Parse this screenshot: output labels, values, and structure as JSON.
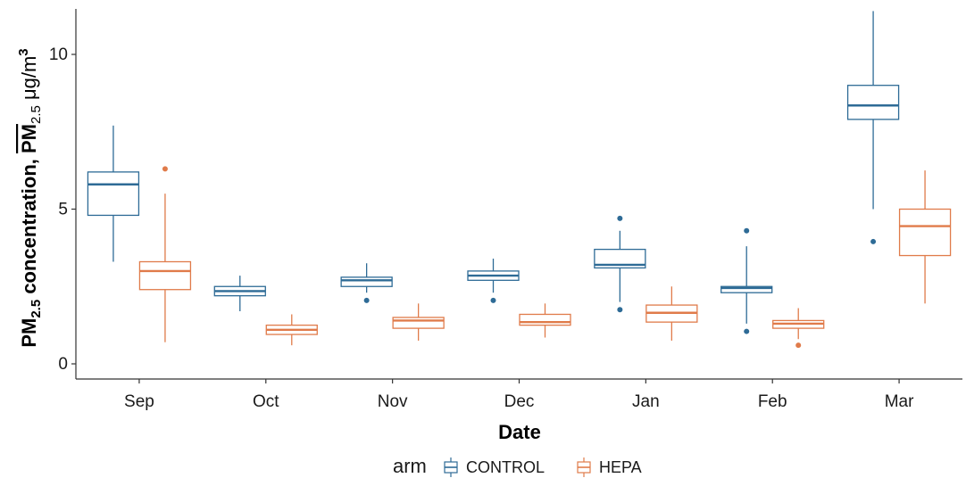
{
  "chart_data": {
    "type": "boxplot",
    "title": "",
    "xlabel": "Date",
    "ylabel": "PM2.5 concentration, PM2.5 μg/m3",
    "ylabel_parts": {
      "pm": "PM",
      "sub": "2.5",
      "mid": " concentration, ",
      "pm_bar": "PM",
      "sub2": "2.5",
      "unit": " μg/m",
      "sup": "3"
    },
    "ylim": [
      -0.5,
      11.5
    ],
    "yticks": [
      0,
      5,
      10
    ],
    "ytick_labels": [
      "0",
      "5",
      "10"
    ],
    "categories": [
      "Sep",
      "Oct",
      "Nov",
      "Dec",
      "Jan",
      "Feb",
      "Mar"
    ],
    "legend": {
      "title": "arm",
      "position": "bottom"
    },
    "grid": false,
    "series": [
      {
        "name": "CONTROL",
        "color": "#2e6b96",
        "boxes": [
          {
            "whisker_low": 3.3,
            "q1": 4.8,
            "median": 5.8,
            "q3": 6.2,
            "whisker_high": 7.7,
            "outliers": []
          },
          {
            "whisker_low": 1.7,
            "q1": 2.2,
            "median": 2.35,
            "q3": 2.5,
            "whisker_high": 2.85,
            "outliers": []
          },
          {
            "whisker_low": 2.3,
            "q1": 2.5,
            "median": 2.7,
            "q3": 2.8,
            "whisker_high": 3.25,
            "outliers": [
              2.05
            ]
          },
          {
            "whisker_low": 2.3,
            "q1": 2.7,
            "median": 2.85,
            "q3": 3.0,
            "whisker_high": 3.4,
            "outliers": [
              2.05
            ]
          },
          {
            "whisker_low": 2.0,
            "q1": 3.1,
            "median": 3.2,
            "q3": 3.7,
            "whisker_high": 4.3,
            "outliers": [
              1.75,
              4.7
            ]
          },
          {
            "whisker_low": 1.3,
            "q1": 2.3,
            "median": 2.45,
            "q3": 2.5,
            "whisker_high": 3.8,
            "outliers": [
              1.05,
              4.3
            ]
          },
          {
            "whisker_low": 5.0,
            "q1": 7.9,
            "median": 8.35,
            "q3": 9.0,
            "whisker_high": 11.4,
            "outliers": [
              3.95
            ]
          }
        ]
      },
      {
        "name": "HEPA",
        "color": "#e07b4a",
        "boxes": [
          {
            "whisker_low": 0.7,
            "q1": 2.4,
            "median": 3.0,
            "q3": 3.3,
            "whisker_high": 5.5,
            "outliers": [
              6.3
            ]
          },
          {
            "whisker_low": 0.6,
            "q1": 0.95,
            "median": 1.1,
            "q3": 1.25,
            "whisker_high": 1.6,
            "outliers": []
          },
          {
            "whisker_low": 0.75,
            "q1": 1.15,
            "median": 1.4,
            "q3": 1.5,
            "whisker_high": 1.95,
            "outliers": []
          },
          {
            "whisker_low": 0.85,
            "q1": 1.25,
            "median": 1.35,
            "q3": 1.6,
            "whisker_high": 1.95,
            "outliers": []
          },
          {
            "whisker_low": 0.75,
            "q1": 1.35,
            "median": 1.65,
            "q3": 1.9,
            "whisker_high": 2.5,
            "outliers": []
          },
          {
            "whisker_low": 0.8,
            "q1": 1.15,
            "median": 1.3,
            "q3": 1.4,
            "whisker_high": 1.8,
            "outliers": [
              0.6
            ]
          },
          {
            "whisker_low": 1.95,
            "q1": 3.5,
            "median": 4.45,
            "q3": 5.0,
            "whisker_high": 6.25,
            "outliers": []
          }
        ]
      }
    ]
  }
}
